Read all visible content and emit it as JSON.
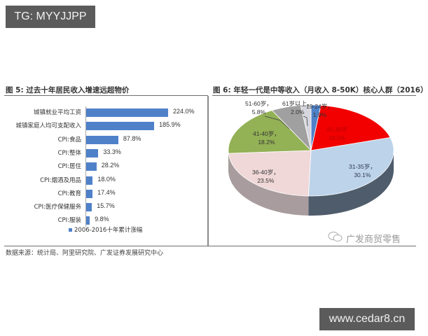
{
  "overlays": {
    "top_left_badge": "TG: MYYJJPP",
    "bottom_right_badge": "www.cedar8.cn"
  },
  "figure5": {
    "title": "图 5:  过去十年居民收入增速远超物价"
  },
  "figure6": {
    "title": "图 6: 年轻一代是中等收入（月收入 8-50K）核心人群（2016）",
    "watermark": "广发商贸零售"
  },
  "source": "数据来源：统计局、阿里研究院、广发证券发展研究中心",
  "chart_data": [
    {
      "type": "bar",
      "orientation": "horizontal",
      "title": "过去十年居民收入增速远超物价",
      "categories": [
        "城镇就业平均工资",
        "城镇家庭人均可支配收入",
        "CPI:食品",
        "CPI:整体",
        "CPI:居住",
        "CPI:烟酒及用品",
        "CPI:教育",
        "CPI:医疗保健服务",
        "CPI:服装"
      ],
      "values": [
        224.0,
        185.9,
        87.8,
        33.3,
        28.2,
        18.0,
        17.4,
        15.7,
        9.8
      ],
      "value_labels": [
        "224.0%",
        "185.9%",
        "87.8%",
        "33.3%",
        "28.2%",
        "18.0%",
        "17.4%",
        "15.7%",
        "9.8%"
      ],
      "series": [
        {
          "name": "2006-2016十年累计涨幅",
          "values": [
            224.0,
            185.9,
            87.8,
            33.3,
            28.2,
            18.0,
            17.4,
            15.7,
            9.8
          ]
        }
      ],
      "xlabel": "",
      "ylabel": "",
      "legend_position": "bottom",
      "grid": false,
      "color": "#4f81c9"
    },
    {
      "type": "pie",
      "style": "3d",
      "title": "年轻一代是中等收入（月收入 8-50K）核心人群（2016）",
      "categories": [
        "19-24岁",
        "25-30岁",
        "31-35岁",
        "36-40岁",
        "41-40岁",
        "51-60岁",
        "61岁以上"
      ],
      "values": [
        1.9,
        18.5,
        30.1,
        23.5,
        18.2,
        5.8,
        2.0
      ],
      "labels": [
        "19-24岁，1.9%",
        "25-30岁，18.5%",
        "31-35岁，30.1%",
        "36-40岁，23.5%",
        "41-40岁，18.2%",
        "51-60岁，5.8%",
        "61岁以上，2.0%"
      ],
      "colors": [
        "#4f81c9",
        "#f20000",
        "#bcd3ea",
        "#f0d8d8",
        "#93b155",
        "#a0a0a0",
        "#d6d6de"
      ],
      "legend_position": "none"
    }
  ]
}
